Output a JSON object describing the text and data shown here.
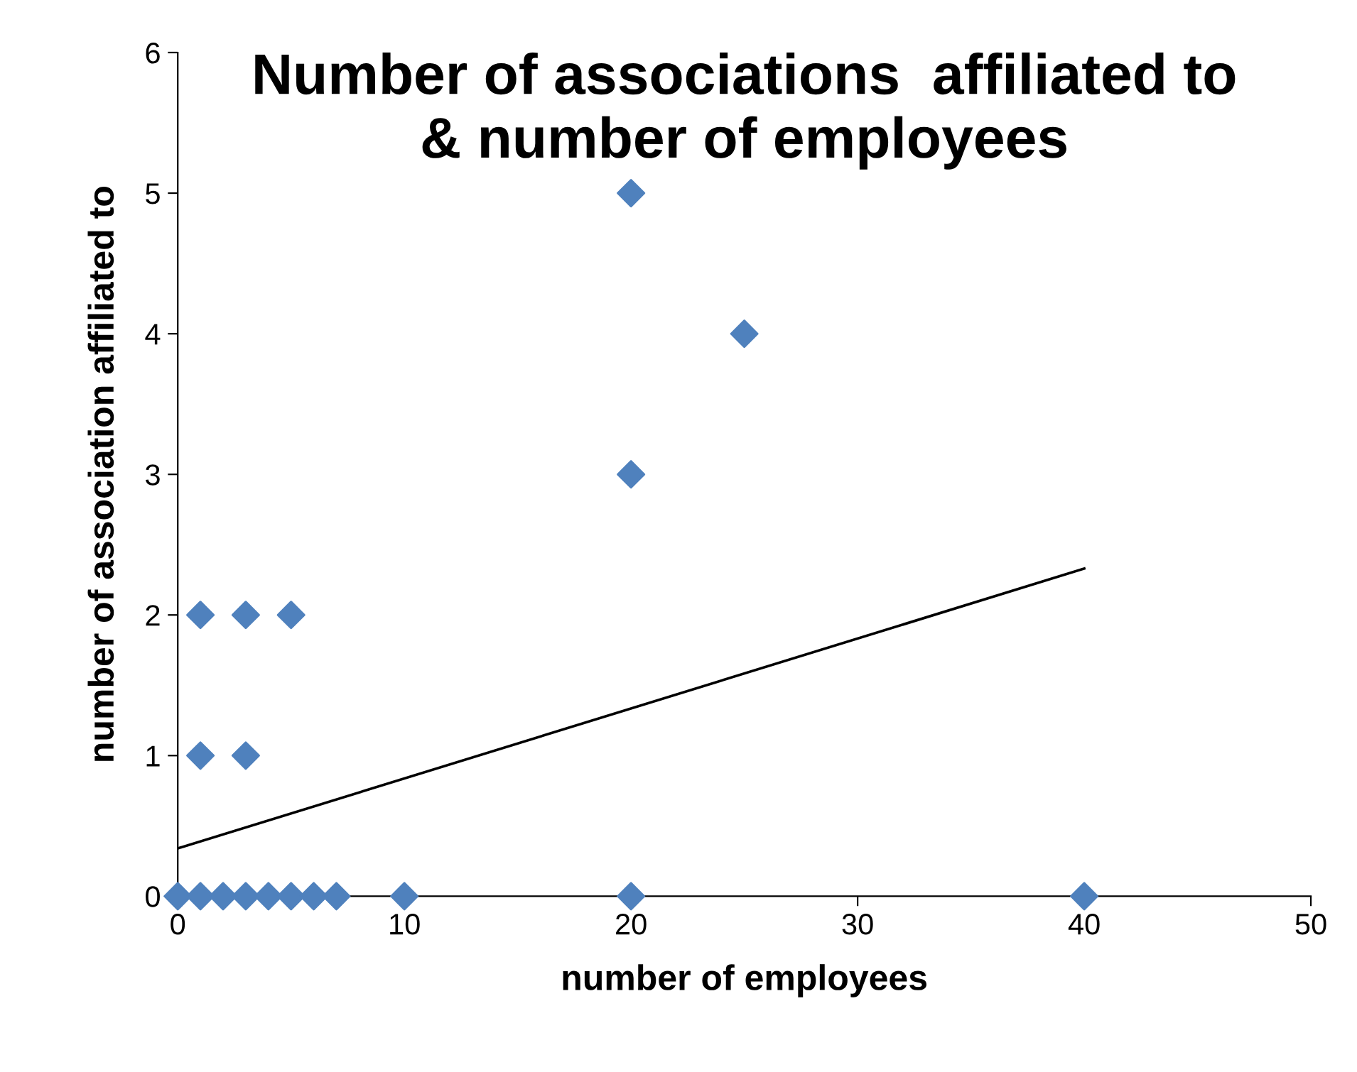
{
  "chart_data": {
    "type": "scatter",
    "title": "Number of associations  affiliated to\n& number of employees",
    "xlabel": "number of employees",
    "ylabel": "number of association affiliated to",
    "series": [
      {
        "type": "scatter",
        "color": "#4f81bd",
        "marker": "diamond",
        "x": [
          0,
          1,
          2,
          3,
          4,
          5,
          6,
          7,
          10,
          20,
          40,
          1,
          3,
          1,
          3,
          5,
          20,
          25,
          20
        ],
        "values": [
          0,
          0,
          0,
          0,
          0,
          0,
          0,
          0,
          0,
          0,
          0,
          1,
          1,
          2,
          2,
          2,
          3,
          4,
          5
        ]
      },
      {
        "type": "line",
        "color": "#000000",
        "marker": "none",
        "x": [
          0,
          40
        ],
        "values": [
          0.34,
          2.33
        ]
      }
    ],
    "xlim": [
      0,
      50
    ],
    "ylim": [
      0,
      6
    ],
    "xticks": [
      0,
      10,
      20,
      30,
      40,
      50
    ],
    "yticks": [
      0,
      1,
      2,
      3,
      4,
      5,
      6
    ],
    "grid": false,
    "legend": false
  }
}
